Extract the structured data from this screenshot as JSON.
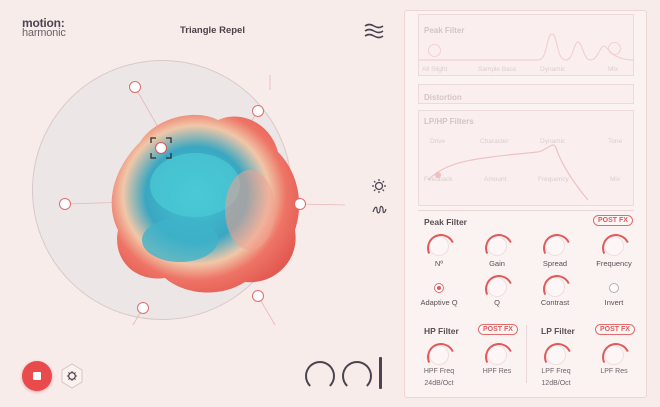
{
  "app": {
    "logo_line1": "motion:",
    "logo_line2": "harmonic",
    "preset_name": "Triangle Repel"
  },
  "icons": {
    "waves": "waves-icon",
    "sun": "sun-icon",
    "squiggle": "squiggle-icon",
    "gear": "gear-icon",
    "power": "stop-icon"
  },
  "ghost": {
    "peak_title": "Peak Filter",
    "peak_row": [
      "All Slight",
      "Sample Bass",
      "Dynamic",
      "Mix"
    ],
    "distortion_title": "Distortion",
    "lphp_title": "LP/HP Filters",
    "lphp_row1": [
      "Drive",
      "Character",
      "Dynamic",
      "Tone"
    ],
    "lphp_row2": [
      "Feedback",
      "Amount",
      "Frequency",
      "Mix"
    ]
  },
  "peak_filter": {
    "title": "Peak Filter",
    "badge": "POST FX",
    "knobs": [
      "Nº",
      "Gain",
      "Spread",
      "Frequency"
    ],
    "row2": [
      "Adaptive Q",
      "Q",
      "Contrast",
      "Invert"
    ]
  },
  "hp_filter": {
    "title": "HP Filter",
    "badge": "POST FX",
    "knob1": "HPF Freq",
    "knob2": "HPF Res",
    "slope": "24dB/Oct"
  },
  "lp_filter": {
    "title": "LP Filter",
    "badge": "POST FX",
    "knob1": "LPF Freq",
    "knob2": "LPF Res",
    "slope": "12dB/Oct"
  },
  "colors": {
    "accent": "#e05a5b",
    "blob_teal": "#3fb8c8",
    "blob_red": "#e8605a"
  }
}
